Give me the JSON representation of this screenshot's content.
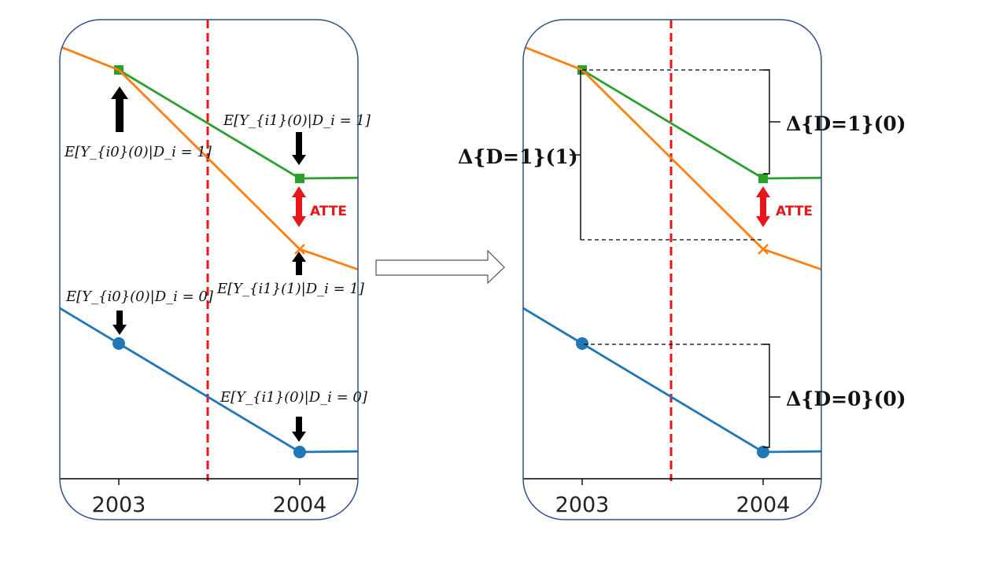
{
  "colors": {
    "treated_observed": "#2ca02c",
    "treated_counterfactual": "#ff7f0e",
    "control": "#1f77b4",
    "reference_line": "#e8151b",
    "atte_arrow": "#e8151b",
    "frame": "#2f4f8f"
  },
  "chart_data": [
    {
      "type": "line",
      "x_ticks": [
        "2003",
        "2004"
      ],
      "series": [
        {
          "key": "treated_observed",
          "x": [
            "2003",
            "2004"
          ],
          "values": [
            0.93,
            0.7
          ]
        },
        {
          "key": "treated_counterfactual",
          "x": [
            "2003",
            "2004"
          ],
          "values": [
            0.93,
            0.55
          ]
        },
        {
          "key": "control",
          "x": [
            "2003",
            "2004"
          ],
          "values": [
            0.35,
            0.12
          ]
        }
      ],
      "annotations": {
        "y_i0_0_d1": "E[Y_{i0}(0)|D_i = 1]",
        "y_i1_0_d1": "E[Y_{i1}(0)|D_i = 1]",
        "y_i1_1_d1": "E[Y_{i1}(1)|D_i = 1]",
        "y_i0_0_d0": "E[Y_{i0}(0)|D_i = 0]",
        "y_i1_0_d0": "E[Y_{i1}(0)|D_i = 0]",
        "atte": "ATTE"
      }
    },
    {
      "type": "line",
      "x_ticks": [
        "2003",
        "2004"
      ],
      "series": [
        {
          "key": "treated_observed",
          "x": [
            "2003",
            "2004"
          ],
          "values": [
            0.93,
            0.7
          ]
        },
        {
          "key": "treated_counterfactual",
          "x": [
            "2003",
            "2004"
          ],
          "values": [
            0.93,
            0.55
          ]
        },
        {
          "key": "control",
          "x": [
            "2003",
            "2004"
          ],
          "values": [
            0.35,
            0.12
          ]
        }
      ],
      "annotations": {
        "delta_d1_1": "Δ{D=1}(1)",
        "delta_d1_0": "Δ{D=1}(0)",
        "delta_d0_0": "Δ{D=0}(0)",
        "atte": "ATTE"
      }
    }
  ],
  "transition_arrow": "right-arrow"
}
